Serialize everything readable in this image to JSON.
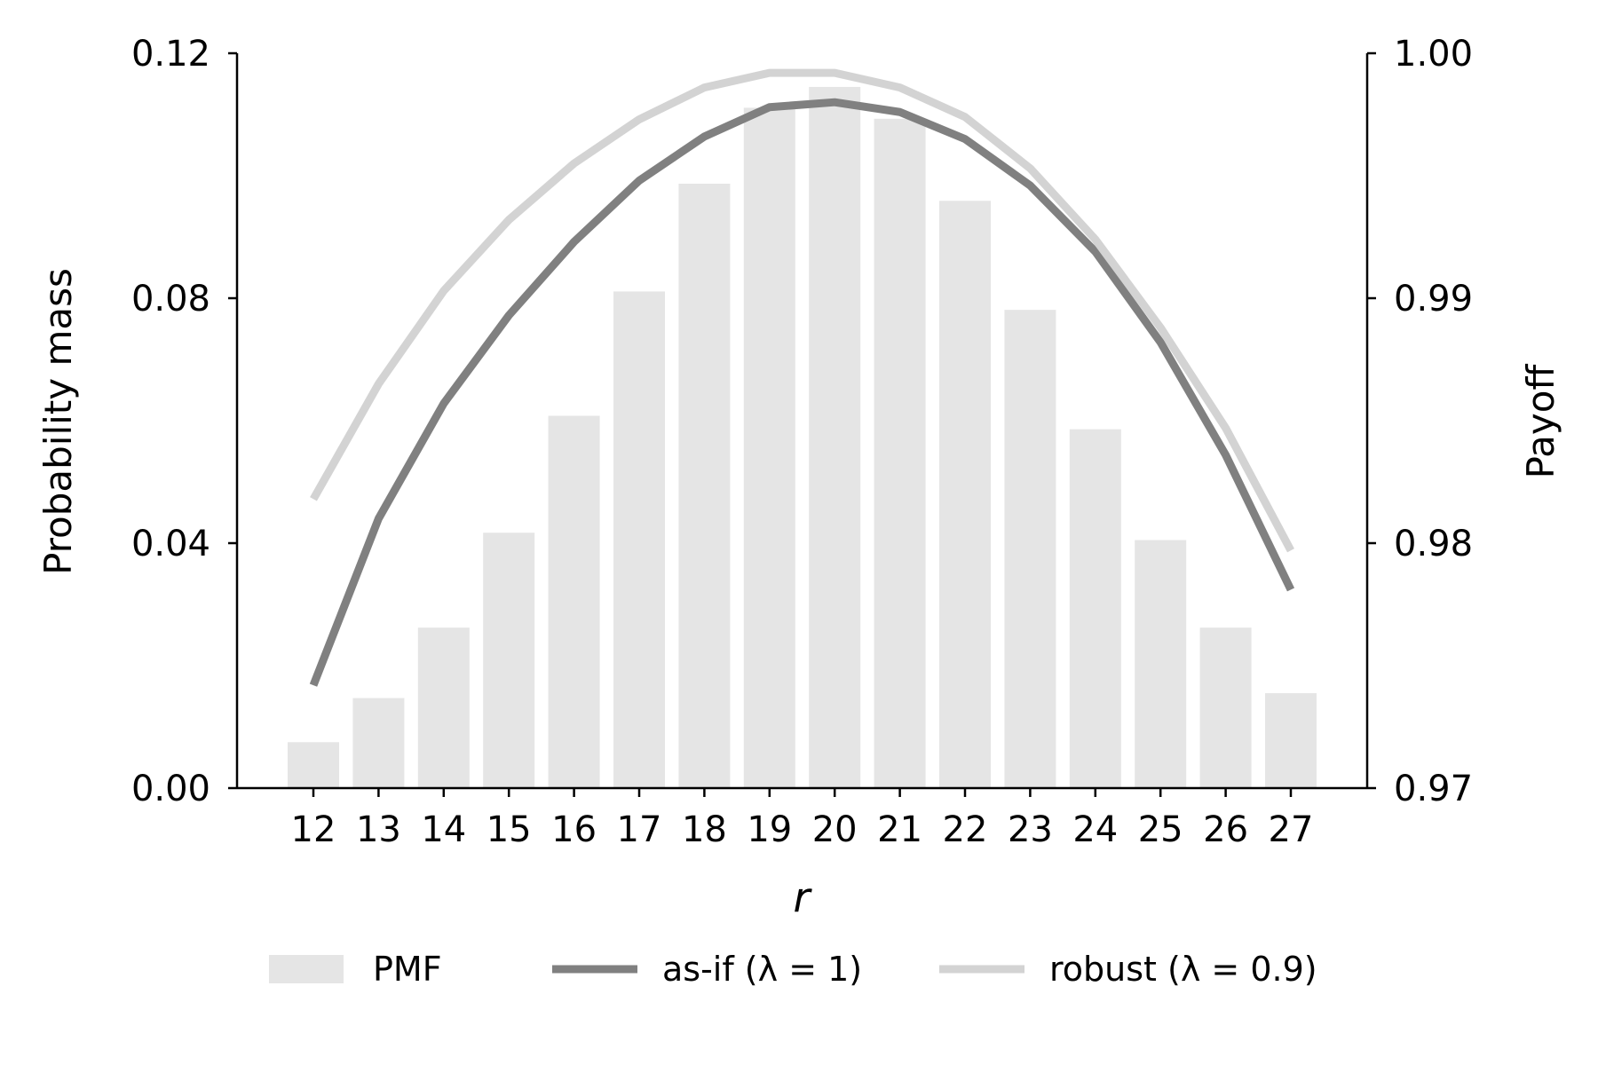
{
  "chart_data": {
    "type": "bar",
    "categories": [
      "12",
      "13",
      "14",
      "15",
      "16",
      "17",
      "18",
      "19",
      "20",
      "21",
      "22",
      "23",
      "24",
      "25",
      "26",
      "27"
    ],
    "xlabel": "r",
    "ylabel_left": "Probability mass",
    "ylabel_right": "Payoff",
    "ylim_left": [
      0,
      0.12
    ],
    "ylim_right": [
      0.97,
      1.0
    ],
    "yticks_left": [
      "0.00",
      "0.04",
      "0.08",
      "0.12"
    ],
    "yticks_right": [
      "0.97",
      "0.98",
      "0.99",
      "1.00"
    ],
    "grid": false,
    "legend_position": "bottom",
    "series": [
      {
        "name": "PMF",
        "kind": "bar",
        "axis": "left",
        "color": "#e5e5e5",
        "values": [
          0.0075,
          0.0147,
          0.0262,
          0.0417,
          0.0608,
          0.0811,
          0.0987,
          0.1111,
          0.1145,
          0.1093,
          0.0959,
          0.0781,
          0.0586,
          0.0405,
          0.0262,
          0.0155
        ]
      },
      {
        "name": "as-if (λ = 1)",
        "kind": "line",
        "axis": "right",
        "color": "#808080",
        "values": [
          0.9742,
          0.981,
          0.9857,
          0.9893,
          0.9923,
          0.9948,
          0.9966,
          0.9978,
          0.998,
          0.9976,
          0.9965,
          0.9946,
          0.9919,
          0.9882,
          0.9836,
          0.9781
        ]
      },
      {
        "name": "robust (λ = 0.9)",
        "kind": "line",
        "axis": "right",
        "color": "#d3d3d3",
        "values": [
          0.9818,
          0.9865,
          0.9903,
          0.9932,
          0.9955,
          0.9973,
          0.9986,
          0.9992,
          0.9992,
          0.9986,
          0.9974,
          0.9953,
          0.9924,
          0.9888,
          0.9847,
          0.9797
        ]
      }
    ]
  }
}
